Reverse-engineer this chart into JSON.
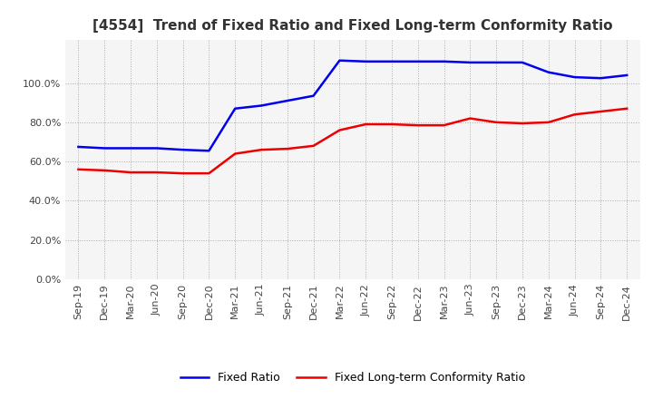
{
  "title": "[4554]  Trend of Fixed Ratio and Fixed Long-term Conformity Ratio",
  "x_labels": [
    "Sep-19",
    "Dec-19",
    "Mar-20",
    "Jun-20",
    "Sep-20",
    "Dec-20",
    "Mar-21",
    "Jun-21",
    "Sep-21",
    "Dec-21",
    "Mar-22",
    "Jun-22",
    "Sep-22",
    "Dec-22",
    "Mar-23",
    "Jun-23",
    "Sep-23",
    "Dec-23",
    "Mar-24",
    "Jun-24",
    "Sep-24",
    "Dec-24"
  ],
  "fixed_ratio": [
    0.675,
    0.668,
    0.668,
    0.668,
    0.66,
    0.655,
    0.87,
    0.885,
    0.91,
    0.935,
    1.115,
    1.11,
    1.11,
    1.11,
    1.11,
    1.105,
    1.105,
    1.105,
    1.055,
    1.03,
    1.025,
    1.04
  ],
  "fixed_lt_conformity": [
    0.56,
    0.555,
    0.545,
    0.545,
    0.54,
    0.54,
    0.64,
    0.66,
    0.665,
    0.68,
    0.76,
    0.79,
    0.79,
    0.785,
    0.785,
    0.82,
    0.8,
    0.795,
    0.8,
    0.84,
    0.855,
    0.87
  ],
  "fixed_ratio_color": "#0000EE",
  "fixed_lt_color": "#EE0000",
  "line_width": 1.8,
  "ylim": [
    0.0,
    1.22
  ],
  "yticks": [
    0.0,
    0.2,
    0.4,
    0.6,
    0.8,
    1.0
  ],
  "grid_color": "#AAAAAA",
  "background_color": "#FFFFFF",
  "plot_bg_color": "#F5F5F5",
  "legend_fixed_ratio": "Fixed Ratio",
  "legend_fixed_lt": "Fixed Long-term Conformity Ratio",
  "title_fontsize": 11,
  "tick_fontsize": 8,
  "legend_fontsize": 9
}
